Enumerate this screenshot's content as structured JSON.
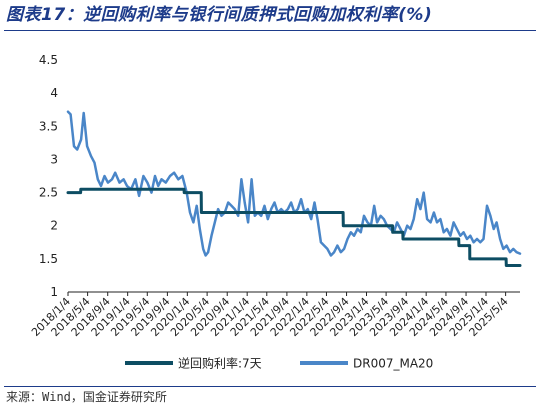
{
  "header": {
    "title": "图表17：逆回购利率与银行间质押式回购加权利率(%)"
  },
  "footer": {
    "source": "来源：Wind，国金证券研究所"
  },
  "colors": {
    "title": "#1d3b8a",
    "series_dark": "#0d4d63",
    "series_light": "#4a86c8",
    "axis": "#222222"
  },
  "chart_data": {
    "type": "line",
    "title": "",
    "xlabel": "",
    "ylabel": "",
    "ylim": [
      1,
      4.5
    ],
    "yticks": [
      "1",
      "1.5",
      "2",
      "2.5",
      "3",
      "3.5",
      "4",
      "4.5"
    ],
    "grid": false,
    "legend_position": "bottom",
    "xticks": [
      "2018/1/4",
      "2018/5/4",
      "2018/9/4",
      "2019/1/4",
      "2019/5/4",
      "2019/9/4",
      "2020/1/4",
      "2020/5/4",
      "2020/9/4",
      "2021/1/4",
      "2021/5/4",
      "2021/9/4",
      "2022/1/4",
      "2022/5/4",
      "2022/9/4",
      "2023/1/4",
      "2023/5/4",
      "2023/9/4",
      "2024/1/4",
      "2024/5/4",
      "2024/9/4",
      "2025/1/4",
      "2025/5/4"
    ],
    "series": [
      {
        "name": "逆回购利率:7天",
        "color": "#0d4d63",
        "x": [
          "2018/1/4",
          "2018/3/22",
          "2018/3/23",
          "2019/12/15",
          "2019/12/16",
          "2020/3/29",
          "2020/3/30",
          "2022/8/14",
          "2022/8/15",
          "2023/6/12",
          "2023/6/13",
          "2023/8/14",
          "2023/8/15",
          "2024/7/21",
          "2024/7/22",
          "2024/9/26",
          "2024/9/27",
          "2025/5/7",
          "2025/5/8",
          "2025/7/31"
        ],
        "values": [
          2.5,
          2.5,
          2.55,
          2.55,
          2.5,
          2.5,
          2.2,
          2.2,
          2.0,
          2.0,
          1.9,
          1.9,
          1.8,
          1.8,
          1.7,
          1.7,
          1.5,
          1.5,
          1.4,
          1.4
        ]
      },
      {
        "name": "DR007_MA20",
        "color": "#4a86c8",
        "x": [
          "2018/1/4",
          "2018/1/20",
          "2018/2/10",
          "2018/3/1",
          "2018/3/25",
          "2018/4/10",
          "2018/5/1",
          "2018/5/25",
          "2018/6/15",
          "2018/7/5",
          "2018/7/25",
          "2018/8/15",
          "2018/9/5",
          "2018/9/30",
          "2018/10/20",
          "2018/11/15",
          "2018/12/10",
          "2018/12/31",
          "2019/1/25",
          "2019/2/20",
          "2019/3/15",
          "2019/4/10",
          "2019/5/5",
          "2019/5/30",
          "2019/6/20",
          "2019/7/10",
          "2019/7/30",
          "2019/8/25",
          "2019/9/20",
          "2019/10/15",
          "2019/11/10",
          "2019/12/5",
          "2019/12/31",
          "2020/1/20",
          "2020/2/10",
          "2020/3/1",
          "2020/3/20",
          "2020/4/10",
          "2020/4/25",
          "2020/5/10",
          "2020/5/31",
          "2020/6/20",
          "2020/7/10",
          "2020/7/31",
          "2020/8/20",
          "2020/9/10",
          "2020/9/30",
          "2020/10/20",
          "2020/11/10",
          "2020/11/30",
          "2020/12/20",
          "2021/1/10",
          "2021/1/31",
          "2021/2/20",
          "2021/3/10",
          "2021/3/31",
          "2021/4/20",
          "2021/5/10",
          "2021/5/31",
          "2021/6/20",
          "2021/7/10",
          "2021/7/31",
          "2021/8/20",
          "2021/9/10",
          "2021/9/30",
          "2021/10/20",
          "2021/11/10",
          "2021/11/30",
          "2021/12/20",
          "2022/1/10",
          "2022/1/31",
          "2022/2/20",
          "2022/3/10",
          "2022/3/31",
          "2022/4/20",
          "2022/5/10",
          "2022/5/31",
          "2022/6/20",
          "2022/7/10",
          "2022/7/31",
          "2022/8/20",
          "2022/9/10",
          "2022/9/30",
          "2022/10/20",
          "2022/11/10",
          "2022/11/30",
          "2022/12/20",
          "2023/1/10",
          "2023/1/31",
          "2023/2/20",
          "2023/3/10",
          "2023/3/31",
          "2023/4/20",
          "2023/5/10",
          "2023/5/31",
          "2023/6/20",
          "2023/7/10",
          "2023/7/31",
          "2023/8/20",
          "2023/9/10",
          "2023/9/30",
          "2023/10/20",
          "2023/11/10",
          "2023/11/30",
          "2023/12/20",
          "2024/1/10",
          "2024/1/31",
          "2024/2/20",
          "2024/3/10",
          "2024/3/31",
          "2024/4/20",
          "2024/5/10",
          "2024/5/31",
          "2024/6/20",
          "2024/7/10",
          "2024/7/31",
          "2024/8/20",
          "2024/9/10",
          "2024/9/30",
          "2024/10/20",
          "2024/11/10",
          "2024/11/30",
          "2024/12/20",
          "2025/1/10",
          "2025/1/31",
          "2025/2/20",
          "2025/3/10",
          "2025/3/31",
          "2025/4/20",
          "2025/5/10",
          "2025/5/31",
          "2025/6/20",
          "2025/7/10",
          "2025/7/31"
        ],
        "values": [
          3.72,
          3.68,
          3.2,
          3.15,
          3.3,
          3.7,
          3.2,
          3.05,
          2.95,
          2.7,
          2.6,
          2.75,
          2.65,
          2.7,
          2.8,
          2.65,
          2.7,
          2.6,
          2.55,
          2.7,
          2.45,
          2.75,
          2.65,
          2.5,
          2.75,
          2.6,
          2.7,
          2.65,
          2.75,
          2.8,
          2.7,
          2.75,
          2.5,
          2.2,
          2.05,
          2.3,
          1.95,
          1.65,
          1.55,
          1.6,
          1.85,
          2.05,
          2.25,
          2.15,
          2.2,
          2.35,
          2.3,
          2.25,
          2.15,
          2.7,
          2.35,
          2.05,
          2.7,
          2.15,
          2.2,
          2.15,
          2.3,
          2.1,
          2.25,
          2.35,
          2.2,
          2.25,
          2.2,
          2.25,
          2.35,
          2.2,
          2.25,
          2.4,
          2.2,
          2.25,
          2.1,
          2.35,
          2.1,
          1.75,
          1.7,
          1.65,
          1.55,
          1.6,
          1.7,
          1.6,
          1.65,
          1.8,
          1.9,
          1.85,
          1.95,
          1.9,
          2.15,
          2.05,
          2.0,
          2.3,
          2.05,
          2.15,
          2.1,
          2.0,
          1.95,
          1.9,
          2.05,
          1.95,
          1.85,
          2.0,
          1.95,
          2.1,
          2.4,
          2.25,
          2.5,
          2.1,
          2.05,
          2.2,
          2.05,
          2.1,
          1.9,
          1.95,
          1.85,
          2.05,
          1.95,
          1.85,
          1.9,
          1.8,
          1.85,
          1.75,
          1.8,
          1.75,
          1.8,
          2.3,
          2.15,
          1.95,
          2.05,
          1.8,
          1.65,
          1.7,
          1.6,
          1.65,
          1.6,
          1.58
        ]
      }
    ]
  }
}
